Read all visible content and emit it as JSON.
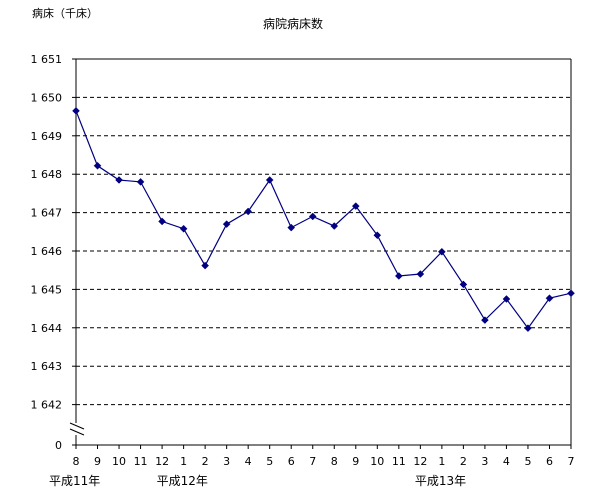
{
  "chart_data": {
    "type": "line",
    "title": "病院病床数",
    "ylabel": "病床（千床）",
    "y_ticks": [
      "1 651",
      "1 650",
      "1 649",
      "1 648",
      "1 647",
      "1 646",
      "1 645",
      "1 644",
      "1 643",
      "1 642"
    ],
    "y_zero_label": "0",
    "ylim": [
      1642,
      1651
    ],
    "axis_break": true,
    "grid": "horizontal dashed",
    "x_ticks": [
      "8",
      "9",
      "10",
      "11",
      "12",
      "1",
      "2",
      "3",
      "4",
      "5",
      "6",
      "7",
      "8",
      "9",
      "10",
      "11",
      "12",
      "1",
      "2",
      "3",
      "4",
      "5",
      "6",
      "7"
    ],
    "year_labels": [
      {
        "text": "平成11年",
        "at_index": 0
      },
      {
        "text": "平成12年",
        "at_index": 5
      },
      {
        "text": "平成13年",
        "at_index": 17
      }
    ],
    "series": [
      {
        "color": "#000080",
        "values": [
          1649.65,
          1648.22,
          1647.85,
          1647.8,
          1646.77,
          1646.58,
          1645.62,
          1646.7,
          1647.03,
          1647.85,
          1646.61,
          1646.9,
          1646.65,
          1647.17,
          1646.41,
          1645.35,
          1645.4,
          1645.98,
          1645.13,
          1644.2,
          1644.75,
          1643.99,
          1644.77,
          1644.9
        ]
      }
    ]
  }
}
